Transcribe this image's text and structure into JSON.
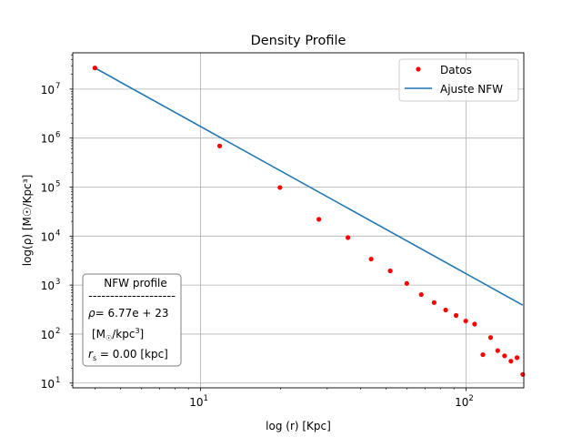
{
  "chart_data": {
    "type": "scatter",
    "title": "Density Profile",
    "xlabel": "log (r) [Kpc]",
    "ylabel": "log(ρ) [M☉/Kpc³]",
    "xscale": "log",
    "yscale": "log",
    "xlim": [
      3.3,
      165
    ],
    "ylim": [
      8,
      55000000
    ],
    "grid": true,
    "legend_position": "top-right",
    "x_ticks": [
      {
        "value": 10,
        "base": "10",
        "exp": "1"
      },
      {
        "value": 100,
        "base": "10",
        "exp": "2"
      }
    ],
    "y_ticks": [
      {
        "value": 10,
        "base": "10",
        "exp": "1"
      },
      {
        "value": 100,
        "base": "10",
        "exp": "2"
      },
      {
        "value": 1000,
        "base": "10",
        "exp": "3"
      },
      {
        "value": 10000,
        "base": "10",
        "exp": "4"
      },
      {
        "value": 100000,
        "base": "10",
        "exp": "5"
      },
      {
        "value": 1000000,
        "base": "10",
        "exp": "6"
      },
      {
        "value": 10000000,
        "base": "10",
        "exp": "7"
      }
    ],
    "series": [
      {
        "name": "Datos",
        "kind": "points",
        "color": "#ff0000",
        "x": [
          4.0,
          11.8,
          19.9,
          27.9,
          35.9,
          43.9,
          51.8,
          59.8,
          67.8,
          75.8,
          83.8,
          91.7,
          99.7,
          107.7,
          115.7,
          123.7,
          131.6,
          139.6,
          147.6,
          155.6,
          163.5
        ],
        "y": [
          27000000,
          690000,
          98000,
          22000,
          9300,
          3400,
          1950,
          1080,
          640,
          440,
          310,
          240,
          185,
          160,
          38,
          85,
          46,
          36,
          28,
          33,
          15
        ]
      },
      {
        "name": "Ajuste NFW",
        "kind": "line",
        "color": "#1f77b4",
        "x": [
          4.0,
          163.5
        ],
        "y": [
          27000000,
          390
        ]
      }
    ],
    "annotation": {
      "title": "NFW profile",
      "separator": "--------------------",
      "rho_label": "ρ",
      "rho_value": "= 6.77e + 23",
      "units_prefix": "[M",
      "units_sun": "☉",
      "units_mid": "/kpc",
      "units_exp": "3",
      "units_suffix": "]",
      "rs_label": "r",
      "rs_sub": "s",
      "rs_value": " = 0.00 [kpc]"
    }
  }
}
